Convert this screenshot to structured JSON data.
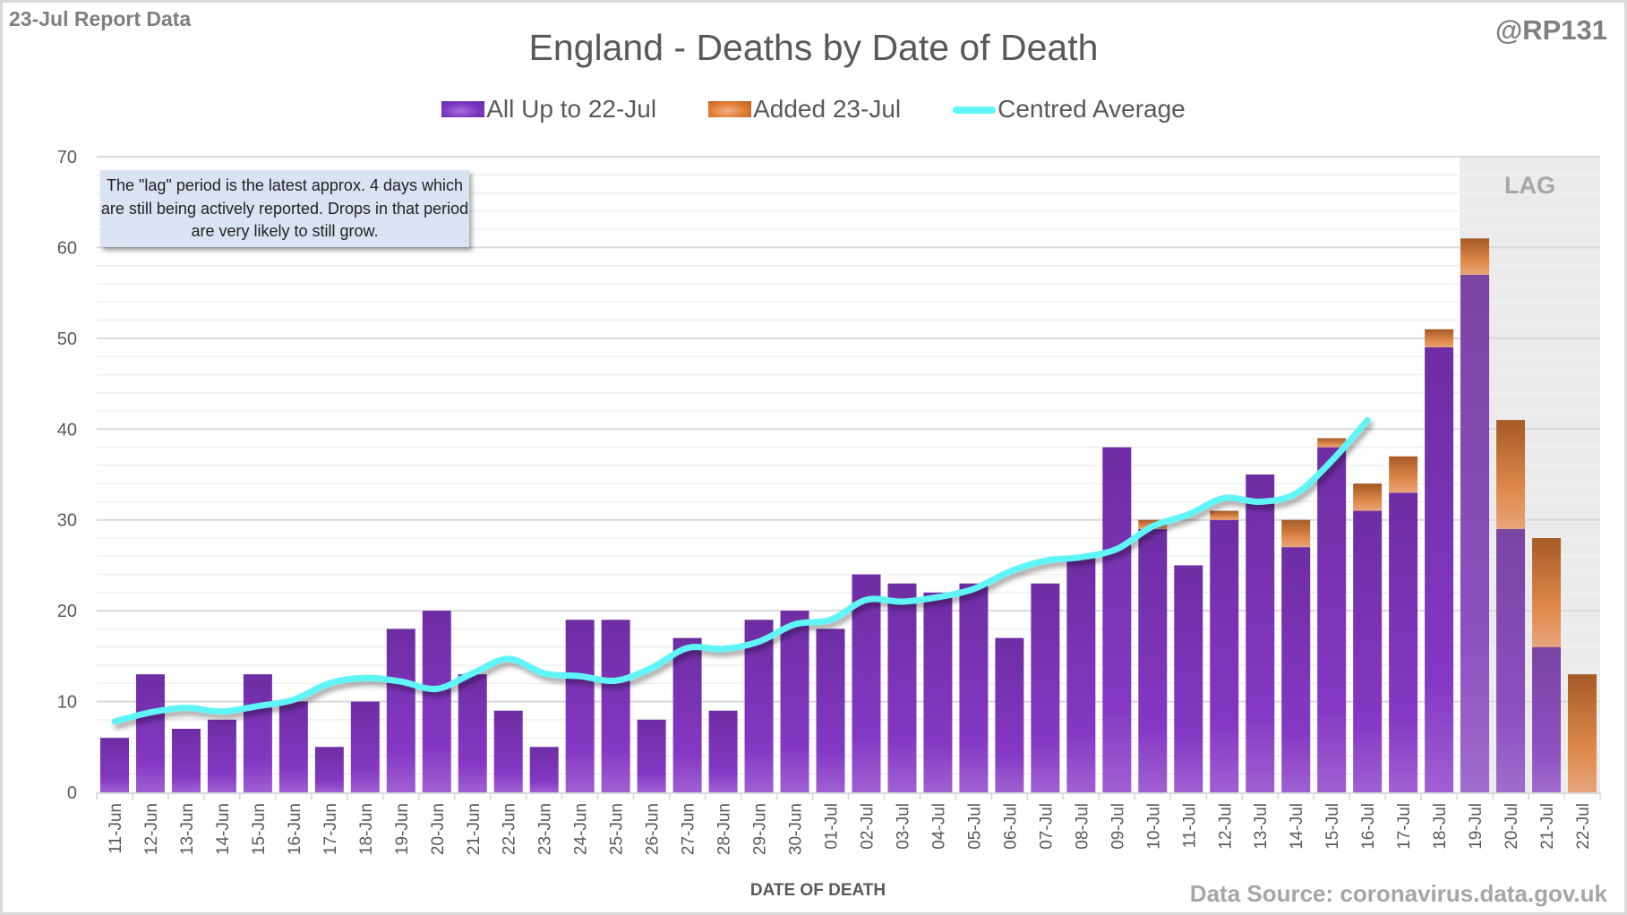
{
  "header": {
    "report_tag": "23-Jul Report Data",
    "handle": "@RP131"
  },
  "note": "The \"lag\" period is the latest approx. 4 days which are still being actively reported.  Drops in that period are very likely to still grow.",
  "footer": {
    "source": "Data Source: coronavirus.data.gov.uk"
  },
  "colors": {
    "all_up_to": "#7b35c0",
    "added": "#e07a32",
    "average": "#5ff5f7",
    "lag_band": "#ebebeb",
    "gridline_major": "#d9d9d9",
    "gridline_minor": "#f0f0f0"
  },
  "chart_data": {
    "type": "bar",
    "stacked": true,
    "title": "England - Deaths by Date of Death",
    "xlabel": "DATE OF DEATH",
    "ylabel": "",
    "ylim": [
      0,
      70
    ],
    "yticks": [
      0,
      10,
      20,
      30,
      40,
      50,
      60,
      70
    ],
    "grid": true,
    "legend_position": "top",
    "lag_label": "LAG",
    "lag_categories": [
      "19-Jul",
      "20-Jul",
      "21-Jul",
      "22-Jul"
    ],
    "categories": [
      "11-Jun",
      "12-Jun",
      "13-Jun",
      "14-Jun",
      "15-Jun",
      "16-Jun",
      "17-Jun",
      "18-Jun",
      "19-Jun",
      "20-Jun",
      "21-Jun",
      "22-Jun",
      "23-Jun",
      "24-Jun",
      "25-Jun",
      "26-Jun",
      "27-Jun",
      "28-Jun",
      "29-Jun",
      "30-Jun",
      "01-Jul",
      "02-Jul",
      "03-Jul",
      "04-Jul",
      "05-Jul",
      "06-Jul",
      "07-Jul",
      "08-Jul",
      "09-Jul",
      "10-Jul",
      "11-Jul",
      "12-Jul",
      "13-Jul",
      "14-Jul",
      "15-Jul",
      "16-Jul",
      "17-Jul",
      "18-Jul",
      "19-Jul",
      "20-Jul",
      "21-Jul",
      "22-Jul"
    ],
    "series": [
      {
        "name": "All Up to 22-Jul",
        "kind": "bar",
        "values": [
          6,
          13,
          7,
          8,
          13,
          10,
          5,
          10,
          18,
          20,
          13,
          9,
          5,
          19,
          19,
          8,
          17,
          9,
          19,
          20,
          18,
          24,
          23,
          22,
          23,
          17,
          23,
          26,
          38,
          29,
          25,
          30,
          35,
          27,
          38,
          31,
          33,
          49,
          57,
          29,
          16,
          0
        ]
      },
      {
        "name": "Added 23-Jul",
        "kind": "bar",
        "values": [
          0,
          0,
          0,
          0,
          0,
          0,
          0,
          0,
          0,
          0,
          0,
          0,
          0,
          0,
          0,
          0,
          0,
          0,
          0,
          0,
          0,
          0,
          0,
          0,
          0,
          0,
          0,
          0,
          0,
          1,
          0,
          1,
          0,
          3,
          1,
          3,
          4,
          2,
          4,
          12,
          12,
          13
        ]
      },
      {
        "name": "Centred Average",
        "kind": "line",
        "values": [
          7.8,
          8.8,
          9.3,
          8.9,
          9.5,
          10.2,
          12.0,
          12.6,
          12.2,
          11.4,
          13.1,
          14.7,
          13.1,
          12.8,
          12.3,
          13.7,
          15.9,
          15.8,
          16.6,
          18.5,
          19.0,
          21.2,
          21.0,
          21.5,
          22.4,
          24.3,
          25.5,
          25.9,
          26.8,
          29.3,
          30.6,
          32.4,
          32.0,
          32.9,
          36.5,
          41.0,
          null,
          null,
          null,
          null,
          null,
          null
        ]
      }
    ]
  }
}
